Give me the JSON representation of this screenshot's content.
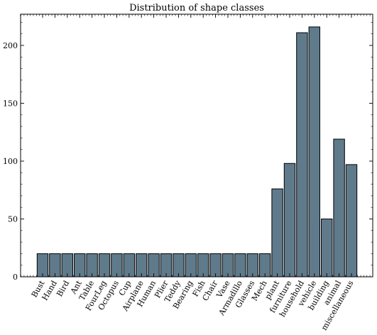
{
  "chart_data": {
    "type": "bar",
    "title": "Distribution of shape classes",
    "xlabel": "",
    "ylabel": "",
    "categories": [
      "Bust",
      "Hand",
      "Bird",
      "Ant",
      "Table",
      "FourLeg",
      "Octopus",
      "Cup",
      "Airplane",
      "Human",
      "Plier",
      "Teddy",
      "Bearing",
      "Fish",
      "Chair",
      "Vase",
      "Armadillo",
      "Glasses",
      "Mech",
      "plant",
      "furniture",
      "household",
      "vehicle",
      "building",
      "animal",
      "miscellaneous"
    ],
    "values": [
      20,
      20,
      20,
      20,
      20,
      20,
      20,
      20,
      20,
      20,
      20,
      20,
      20,
      20,
      20,
      20,
      20,
      20,
      20,
      76,
      98,
      211,
      216,
      50,
      119,
      97
    ],
    "ylim": [
      0,
      227
    ],
    "yticks": [
      0,
      50,
      100,
      150,
      200
    ],
    "bar_color": "#5f7a8b",
    "grid": false,
    "legend": "none"
  }
}
